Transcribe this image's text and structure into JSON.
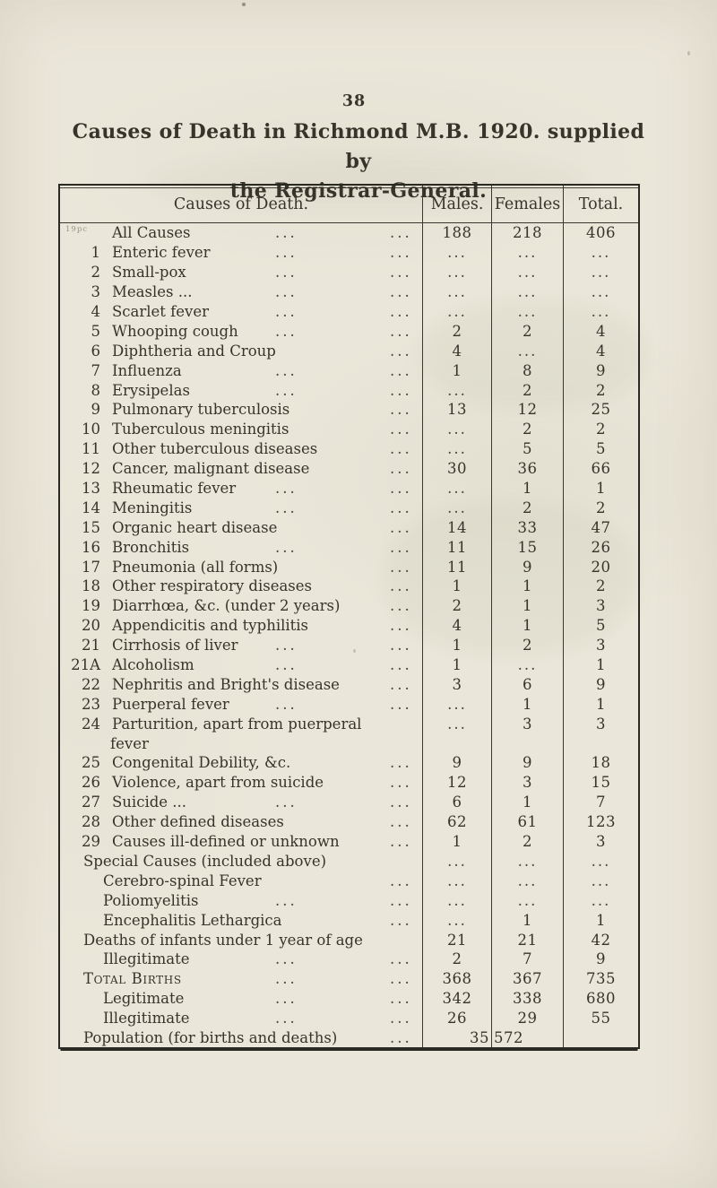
{
  "page": {
    "number": "38"
  },
  "title": {
    "line1": "Causes of Death in Richmond M.B. 1920. supplied by",
    "line2": "the Registrar-General."
  },
  "colors": {
    "paper": "#eae6d9",
    "ink": "#37342b",
    "border": "#2b2923"
  },
  "table": {
    "leader_dots": "...",
    "nil_symbol": "...",
    "headers": {
      "cause": "Causes of Death.",
      "males": "Males.",
      "females": "Females",
      "total": "Total."
    },
    "rows": [
      {
        "num": "",
        "mark": "19pc",
        "label": "All Causes",
        "style": "item",
        "leaders": 2,
        "m": "188",
        "f": "218",
        "t": "406"
      },
      {
        "num": "1",
        "label": "Enteric fever",
        "style": "item",
        "leaders": 2,
        "m": "...",
        "f": "...",
        "t": "..."
      },
      {
        "num": "2",
        "label": "Small-pox",
        "style": "item",
        "leaders": 2,
        "m": "...",
        "f": "...",
        "t": "..."
      },
      {
        "num": "3",
        "label": "Measles ...",
        "style": "item",
        "leaders": 2,
        "m": "...",
        "f": "...",
        "t": "..."
      },
      {
        "num": "4",
        "label": "Scarlet fever",
        "style": "item",
        "leaders": 2,
        "m": "...",
        "f": "...",
        "t": "..."
      },
      {
        "num": "5",
        "label": "Whooping cough",
        "style": "item",
        "leaders": 2,
        "m": "2",
        "f": "2",
        "t": "4"
      },
      {
        "num": "6",
        "label": "Diphtheria and Croup",
        "style": "item",
        "leaders": 1,
        "m": "4",
        "f": "...",
        "t": "4"
      },
      {
        "num": "7",
        "label": "Influenza",
        "style": "item",
        "leaders": 2,
        "m": "1",
        "f": "8",
        "t": "9"
      },
      {
        "num": "8",
        "label": "Erysipelas",
        "style": "item",
        "leaders": 2,
        "m": "...",
        "f": "2",
        "t": "2"
      },
      {
        "num": "9",
        "label": "Pulmonary tuberculosis",
        "style": "item",
        "leaders": 1,
        "m": "13",
        "f": "12",
        "t": "25"
      },
      {
        "num": "10",
        "label": "Tuberculous meningitis",
        "style": "item",
        "leaders": 1,
        "m": "...",
        "f": "2",
        "t": "2"
      },
      {
        "num": "11",
        "label": "Other tuberculous diseases",
        "style": "item",
        "leaders": 1,
        "m": "...",
        "f": "5",
        "t": "5"
      },
      {
        "num": "12",
        "label": "Cancer, malignant disease",
        "style": "item",
        "leaders": 1,
        "m": "30",
        "f": "36",
        "t": "66"
      },
      {
        "num": "13",
        "label": "Rheumatic fever",
        "style": "item",
        "leaders": 2,
        "m": "...",
        "f": "1",
        "t": "1"
      },
      {
        "num": "14",
        "label": "Meningitis",
        "style": "item",
        "leaders": 2,
        "m": "...",
        "f": "2",
        "t": "2"
      },
      {
        "num": "15",
        "label": "Organic heart disease",
        "style": "item",
        "leaders": 1,
        "m": "14",
        "f": "33",
        "t": "47"
      },
      {
        "num": "16",
        "label": "Bronchitis",
        "style": "item",
        "leaders": 2,
        "m": "11",
        "f": "15",
        "t": "26"
      },
      {
        "num": "17",
        "label": "Pneumonia (all forms)",
        "style": "item",
        "leaders": 1,
        "m": "11",
        "f": "9",
        "t": "20"
      },
      {
        "num": "18",
        "label": "Other respiratory diseases",
        "style": "item",
        "leaders": 1,
        "m": "1",
        "f": "1",
        "t": "2"
      },
      {
        "num": "19",
        "label": "Diarrhœa, &c. (under 2 years)",
        "style": "item",
        "leaders": 1,
        "m": "2",
        "f": "1",
        "t": "3"
      },
      {
        "num": "20",
        "label": "Appendicitis and typhilitis",
        "style": "item",
        "leaders": 1,
        "m": "4",
        "f": "1",
        "t": "5"
      },
      {
        "num": "21",
        "label": "Cirrhosis of liver",
        "style": "item",
        "leaders": 2,
        "m": "1",
        "f": "2",
        "t": "3"
      },
      {
        "num": "21A",
        "label": "Alcoholism",
        "style": "item",
        "leaders": 2,
        "m": "1",
        "f": "...",
        "t": "1"
      },
      {
        "num": "22",
        "label": "Nephritis and Bright's disease",
        "style": "item",
        "leaders": 1,
        "m": "3",
        "f": "6",
        "t": "9"
      },
      {
        "num": "23",
        "label": "Puerperal fever",
        "style": "item",
        "leaders": 2,
        "m": "...",
        "f": "1",
        "t": "1"
      },
      {
        "num": "24",
        "label": "Parturition, apart from puerperal",
        "style": "item",
        "leaders": 0,
        "m": "...",
        "f": "3",
        "t": "3"
      },
      {
        "num": "",
        "label": "fever",
        "style": "wrap",
        "leaders": 0,
        "m": "",
        "f": "",
        "t": ""
      },
      {
        "num": "25",
        "label": "Congenital Debility, &c.",
        "style": "item",
        "leaders": 1,
        "m": "9",
        "f": "9",
        "t": "18"
      },
      {
        "num": "26",
        "label": "Violence, apart from suicide",
        "style": "item",
        "leaders": 1,
        "m": "12",
        "f": "3",
        "t": "15"
      },
      {
        "num": "27",
        "label": "Suicide ...",
        "style": "item",
        "leaders": 2,
        "m": "6",
        "f": "1",
        "t": "7"
      },
      {
        "num": "28",
        "label": "Other defined diseases",
        "style": "item",
        "leaders": 1,
        "m": "62",
        "f": "61",
        "t": "123"
      },
      {
        "num": "29",
        "label": "Causes ill-defined or unknown",
        "style": "item",
        "leaders": 1,
        "m": "1",
        "f": "2",
        "t": "3"
      },
      {
        "num": "",
        "label": "Special Causes (included above)",
        "style": "group",
        "leaders": 0,
        "m": "...",
        "f": "...",
        "t": "..."
      },
      {
        "num": "",
        "label": "Cerebro-spinal Fever",
        "style": "sub",
        "leaders": 1,
        "m": "...",
        "f": "...",
        "t": "..."
      },
      {
        "num": "",
        "label": "Poliomyelitis",
        "style": "sub",
        "leaders": 2,
        "m": "...",
        "f": "...",
        "t": "..."
      },
      {
        "num": "",
        "label": "Encephalitis Lethargica",
        "style": "sub",
        "leaders": 1,
        "m": "...",
        "f": "1",
        "t": "1"
      },
      {
        "num": "",
        "label": "Deaths of infants under 1 year of age",
        "style": "group",
        "leaders": 0,
        "m": "21",
        "f": "21",
        "t": "42"
      },
      {
        "num": "",
        "label": "Illegitimate",
        "style": "sub",
        "leaders": 2,
        "m": "2",
        "f": "7",
        "t": "9"
      },
      {
        "num": "",
        "label": "Total Births",
        "style": "group smallcaps",
        "leaders": 2,
        "m": "368",
        "f": "367",
        "t": "735"
      },
      {
        "num": "",
        "label": "Legitimate",
        "style": "sub",
        "leaders": 2,
        "m": "342",
        "f": "338",
        "t": "680"
      },
      {
        "num": "",
        "label": "Illegitimate",
        "style": "sub",
        "leaders": 2,
        "m": "26",
        "f": "29",
        "t": "55"
      },
      {
        "num": "",
        "label": "Population (for births and deaths)",
        "style": "group pop",
        "leaders": 1,
        "m": "35",
        "f": "572",
        "t": ""
      }
    ]
  }
}
